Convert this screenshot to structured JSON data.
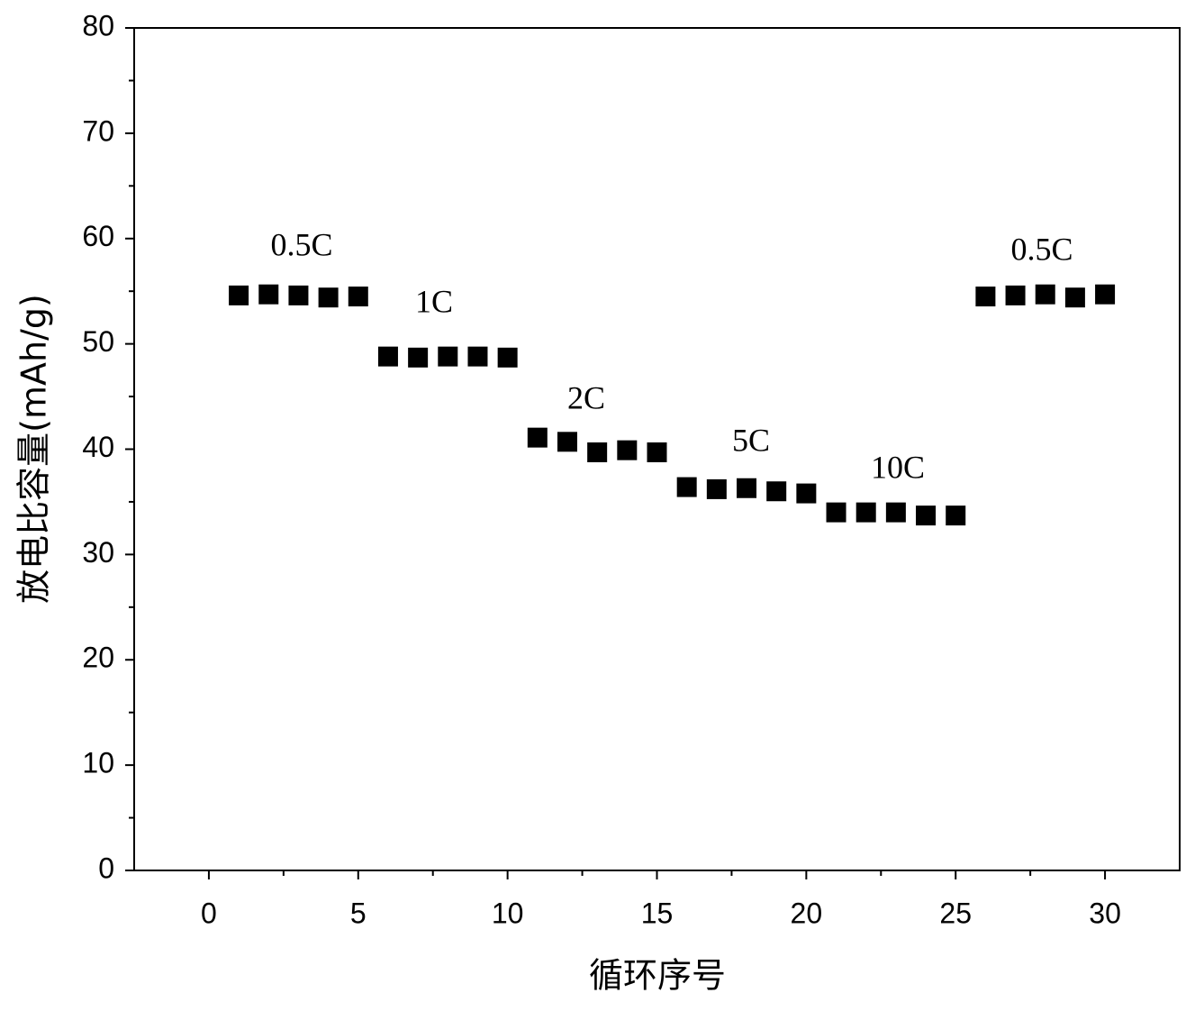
{
  "chart_data": {
    "type": "scatter",
    "x_label": "循环序号",
    "y_label": "放电比容量(mAh/g)",
    "x": [
      1,
      2,
      3,
      4,
      5,
      6,
      7,
      8,
      9,
      10,
      11,
      12,
      13,
      14,
      15,
      16,
      17,
      18,
      19,
      20,
      21,
      22,
      23,
      24,
      25,
      26,
      27,
      28,
      29,
      30
    ],
    "series": [
      {
        "name": "放电比容量",
        "color": "#000000",
        "values": [
          54.6,
          54.7,
          54.6,
          54.4,
          54.5,
          48.8,
          48.7,
          48.8,
          48.8,
          48.7,
          41.1,
          40.7,
          39.7,
          39.9,
          39.7,
          36.4,
          36.2,
          36.3,
          36.0,
          35.8,
          34.0,
          34.0,
          34.0,
          33.7,
          33.7,
          54.5,
          54.6,
          54.7,
          54.4,
          54.7
        ]
      }
    ],
    "annotations": [
      "0.5C",
      "1C",
      "2C",
      "5C",
      "10C",
      "0.5C"
    ],
    "xlim": [
      -2.5,
      32.5
    ],
    "xticks": [
      0,
      5,
      10,
      15,
      20,
      25,
      30
    ],
    "ylim": [
      0,
      80
    ],
    "yticks": [
      0,
      10,
      20,
      30,
      40,
      50,
      60,
      70,
      80
    ],
    "grid": false
  }
}
